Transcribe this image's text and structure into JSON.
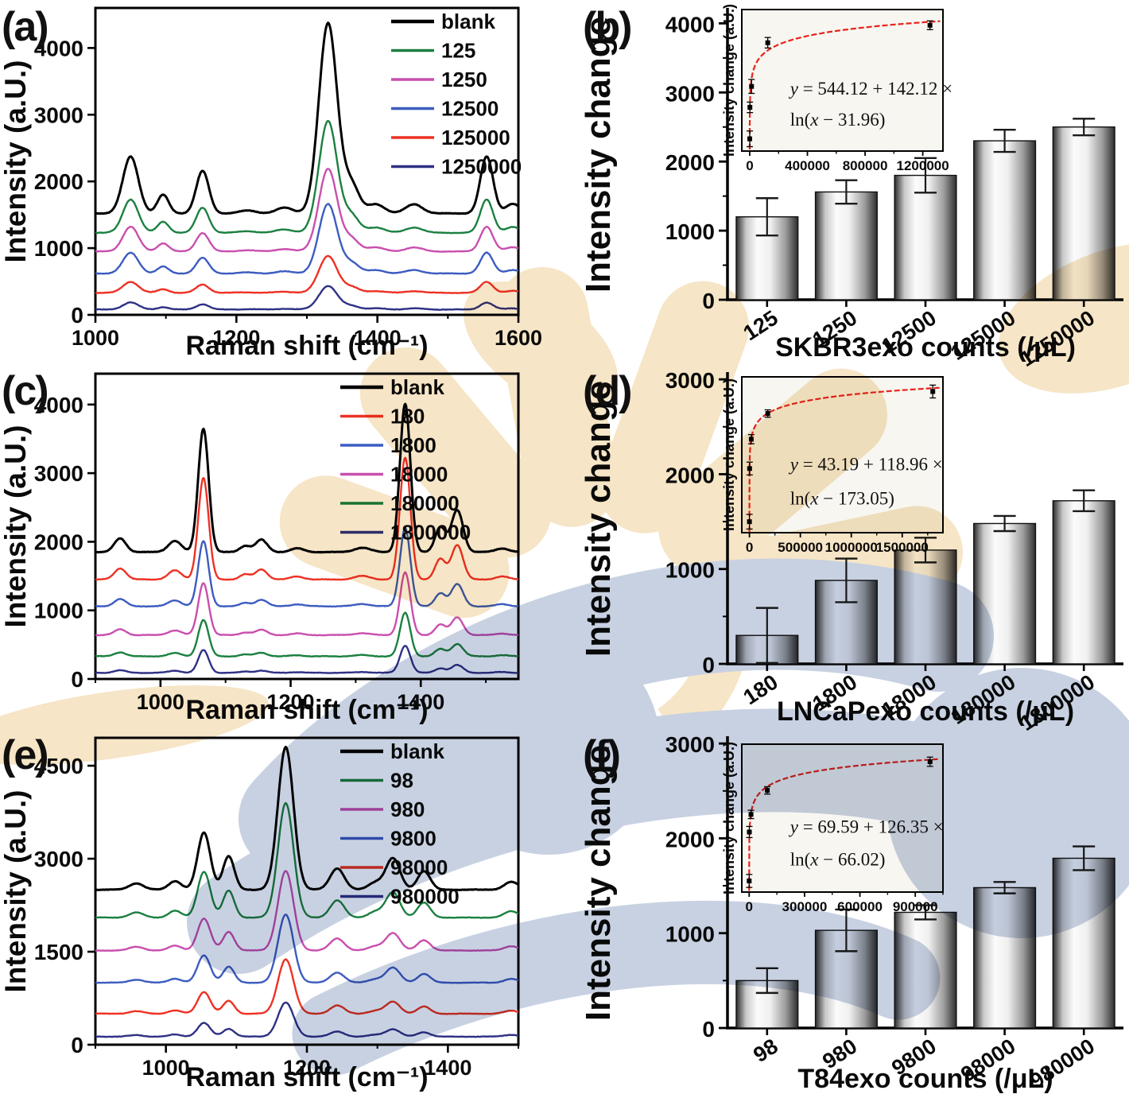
{
  "watermark": {
    "beige_color": "#f6e3c1",
    "blue_color": "#c3cde0"
  },
  "chart_data": [
    {
      "id": "a",
      "panel_label": "(a)",
      "type": "line",
      "xlabel": "Raman shift (cm⁻¹)",
      "ylabel": "Intensity (a.U.)",
      "xlim": [
        1000,
        1600
      ],
      "ylim": [
        0,
        4600
      ],
      "xticks": [
        1000,
        1200,
        1400,
        1600
      ],
      "yticks": [
        0,
        1000,
        2000,
        3000,
        4000
      ],
      "xminor_step": 100,
      "grid": false,
      "legend_position": "top-right",
      "peaks": [
        [
          1050,
          11,
          1
        ],
        [
          1096,
          8,
          0.33
        ],
        [
          1152,
          9,
          0.75
        ],
        [
          1215,
          12,
          0.05
        ],
        [
          1268,
          12,
          0.1
        ],
        [
          1330,
          13,
          3.35
        ],
        [
          1363,
          11,
          0.5
        ],
        [
          1398,
          12,
          0.16
        ],
        [
          1452,
          12,
          0.16
        ],
        [
          1555,
          9,
          1.0
        ],
        [
          1592,
          10,
          0.17
        ]
      ],
      "series": [
        {
          "name": "blank",
          "color": "#000000",
          "offset": 1520,
          "scale": 850
        },
        {
          "name": "125",
          "color": "#1b8040",
          "offset": 1230,
          "scale": 500
        },
        {
          "name": "1250",
          "color": "#c94fae",
          "offset": 950,
          "scale": 370
        },
        {
          "name": "12500",
          "color": "#3c5cc0",
          "offset": 620,
          "scale": 310
        },
        {
          "name": "125000",
          "color": "#ee3124",
          "offset": 330,
          "scale": 165
        },
        {
          "name": "1250000",
          "color": "#2f3185",
          "offset": 80,
          "scale": 105
        }
      ]
    },
    {
      "id": "b",
      "panel_label": "(b)",
      "type": "bar",
      "xlabel": "SKBR3exo counts (/μL)",
      "ylabel": "Intensity change",
      "categories": [
        "125",
        "1250",
        "12500",
        "125000",
        "1250000"
      ],
      "values": [
        1200,
        1560,
        1800,
        2300,
        2500
      ],
      "errors": [
        270,
        170,
        250,
        160,
        120
      ],
      "ylim": [
        0,
        4200
      ],
      "yticks": [
        0,
        1000,
        2000,
        3000,
        4000
      ],
      "yminor_step": 500,
      "inset": {
        "ylabel": "Intensity change (a.U.)",
        "equation": [
          "y = 544.12 + 142.12 ×",
          "ln(x − 31.96)"
        ],
        "fit": {
          "a": 544.12,
          "b": 142.12,
          "c": 31.96
        },
        "x": [
          125,
          1250,
          12500,
          125000,
          1250000
        ],
        "y": [
          1200,
          1560,
          1800,
          2300,
          2500
        ],
        "yerr": [
          90,
          60,
          80,
          60,
          50
        ],
        "xlim": [
          -55000,
          1340000
        ],
        "ylim": [
          1060,
          2680
        ],
        "xticks": [
          0,
          400000,
          800000,
          1200000
        ],
        "curve_color": "#e8231a",
        "point_color": "#000000"
      }
    },
    {
      "id": "c",
      "panel_label": "(c)",
      "type": "line",
      "xlabel": "Raman shift (cm⁻¹)",
      "ylabel": "Intensity (a.U.)",
      "xlim": [
        900,
        1550
      ],
      "ylim": [
        0,
        4450
      ],
      "xticks": [
        1000,
        1200,
        1400
      ],
      "yticks": [
        0,
        1000,
        2000,
        3000,
        4000
      ],
      "xminor_step": 100,
      "grid": false,
      "legend_position": "top-right",
      "peaks": [
        [
          938,
          9,
          0.11
        ],
        [
          1022,
          10,
          0.09
        ],
        [
          1066,
          8,
          1.0
        ],
        [
          1130,
          8,
          0.05
        ],
        [
          1155,
          9,
          0.1
        ],
        [
          1210,
          10,
          0.03
        ],
        [
          1310,
          12,
          0.035
        ],
        [
          1376,
          8,
          1.2
        ],
        [
          1430,
          8,
          0.2
        ],
        [
          1456,
          9,
          0.34
        ],
        [
          1525,
          10,
          0.03
        ]
      ],
      "series": [
        {
          "name": "blank",
          "color": "#000000",
          "offset": 1850,
          "scale": 1800
        },
        {
          "name": "180",
          "color": "#ee3124",
          "offset": 1450,
          "scale": 1480
        },
        {
          "name": "1800",
          "color": "#3c5cc0",
          "offset": 1060,
          "scale": 950
        },
        {
          "name": "18000",
          "color": "#c94fae",
          "offset": 640,
          "scale": 760
        },
        {
          "name": "180000",
          "color": "#1b8040",
          "offset": 330,
          "scale": 530
        },
        {
          "name": "1800000",
          "color": "#2f3185",
          "offset": 90,
          "scale": 330
        }
      ]
    },
    {
      "id": "d",
      "panel_label": "(d)",
      "type": "bar",
      "xlabel": "LNCaPexo counts (/μL)",
      "ylabel": "Intensity change",
      "categories": [
        "180",
        "1800",
        "18000",
        "180000",
        "1800000"
      ],
      "values": [
        300,
        880,
        1200,
        1480,
        1720
      ],
      "errors": [
        290,
        230,
        130,
        80,
        110
      ],
      "ylim": [
        0,
        3060
      ],
      "yticks": [
        0,
        1000,
        2000,
        3000
      ],
      "yminor_step": 500,
      "inset": {
        "ylabel": "Intensity change (a.U.)",
        "equation": [
          "y = 43.19 + 118.96 ×",
          "ln(x − 173.05)"
        ],
        "fit": {
          "a": 43.19,
          "b": 118.96,
          "c": 173.05
        },
        "x": [
          180,
          1800,
          18000,
          180000,
          1800000
        ],
        "y": [
          300,
          880,
          1200,
          1480,
          1720
        ],
        "yerr": [
          80,
          70,
          50,
          40,
          70
        ],
        "xlim": [
          -75000,
          1900000
        ],
        "ylim": [
          180,
          1880
        ],
        "xticks": [
          0,
          500000,
          1000000,
          1500000
        ],
        "curve_color": "#e8231a",
        "point_color": "#000000"
      }
    },
    {
      "id": "e",
      "panel_label": "(e)",
      "type": "line",
      "xlabel": "Raman shift (cm⁻¹)",
      "ylabel": "Intensity (a.U.)",
      "xlim": [
        900,
        1500
      ],
      "ylim": [
        0,
        4950
      ],
      "xticks": [
        1000,
        1200,
        1400
      ],
      "yticks": [
        0,
        1500,
        3000,
        4500
      ],
      "xminor_step": 100,
      "grid": false,
      "legend_position": "top-right",
      "peaks": [
        [
          958,
          10,
          0.045
        ],
        [
          1013,
          9,
          0.06
        ],
        [
          1054,
          9,
          0.4
        ],
        [
          1089,
          8,
          0.235
        ],
        [
          1170,
          11,
          1.0
        ],
        [
          1243,
          10,
          0.15
        ],
        [
          1297,
          10,
          0.05
        ],
        [
          1322,
          10,
          0.22
        ],
        [
          1366,
          9,
          0.13
        ],
        [
          1490,
          10,
          0.055
        ]
      ],
      "series": [
        {
          "name": "blank",
          "color": "#000000",
          "offset": 2500,
          "scale": 2300
        },
        {
          "name": "98",
          "color": "#1b8040",
          "offset": 2050,
          "scale": 1850
        },
        {
          "name": "980",
          "color": "#c94fae",
          "offset": 1520,
          "scale": 1280
        },
        {
          "name": "9800",
          "color": "#3c5cc0",
          "offset": 1000,
          "scale": 1100
        },
        {
          "name": "98000",
          "color": "#ee3124",
          "offset": 500,
          "scale": 880
        },
        {
          "name": "980000",
          "color": "#2f3185",
          "offset": 130,
          "scale": 550
        }
      ]
    },
    {
      "id": "f",
      "panel_label": "(f)",
      "type": "bar",
      "xlabel": "T84exo counts (/μL)",
      "ylabel": "Intensity change",
      "categories": [
        "98",
        "980",
        "9800",
        "98000",
        "980000"
      ],
      "values": [
        500,
        1030,
        1220,
        1480,
        1790
      ],
      "errors": [
        130,
        220,
        75,
        60,
        125
      ],
      "ylim": [
        0,
        3060
      ],
      "yticks": [
        0,
        1000,
        2000,
        3000
      ],
      "yminor_step": 500,
      "inset": {
        "ylabel": "Intensity change (a.U.)",
        "equation": [
          "y = 69.59 + 126.35 ×",
          "ln(x − 66.02)"
        ],
        "fit": {
          "a": 69.59,
          "b": 126.35,
          "c": 66.02
        },
        "x": [
          98,
          980,
          9800,
          98000,
          980000
        ],
        "y": [
          500,
          1030,
          1220,
          1480,
          1790
        ],
        "yerr": [
          70,
          60,
          45,
          40,
          50
        ],
        "xlim": [
          -40000,
          1050000
        ],
        "ylim": [
          380,
          1980
        ],
        "xticks": [
          0,
          300000,
          600000,
          900000
        ],
        "curve_color": "#e8231a",
        "point_color": "#000000"
      }
    }
  ]
}
